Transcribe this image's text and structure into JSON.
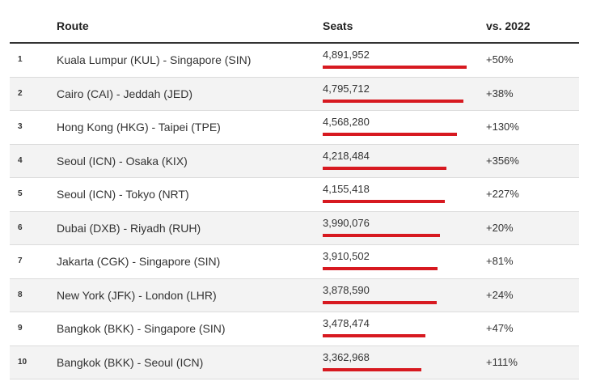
{
  "header": {
    "route": "Route",
    "seats": "Seats",
    "vs": "vs. 2022"
  },
  "accent_color": "#d71920",
  "chart_data": {
    "type": "table",
    "columns": [
      "",
      "Route",
      "Seats",
      "vs. 2022"
    ],
    "bar_color": "#d71920",
    "rows": [
      {
        "rank": "1",
        "route": "Kuala Lumpur (KUL) - Singapore (SIN)",
        "seats": "4,891,952",
        "value": 4891952,
        "vs": "+50%"
      },
      {
        "rank": "2",
        "route": "Cairo (CAI) - Jeddah (JED)",
        "seats": "4,795,712",
        "value": 4795712,
        "vs": "+38%"
      },
      {
        "rank": "3",
        "route": "Hong Kong (HKG) - Taipei (TPE)",
        "seats": "4,568,280",
        "value": 4568280,
        "vs": "+130%"
      },
      {
        "rank": "4",
        "route": "Seoul (ICN) - Osaka (KIX)",
        "seats": "4,218,484",
        "value": 4218484,
        "vs": "+356%"
      },
      {
        "rank": "5",
        "route": "Seoul (ICN) - Tokyo (NRT)",
        "seats": "4,155,418",
        "value": 4155418,
        "vs": "+227%"
      },
      {
        "rank": "6",
        "route": "Dubai (DXB) - Riyadh (RUH)",
        "seats": "3,990,076",
        "value": 3990076,
        "vs": "+20%"
      },
      {
        "rank": "7",
        "route": "Jakarta (CGK) - Singapore (SIN)",
        "seats": "3,910,502",
        "value": 3910502,
        "vs": "+81%"
      },
      {
        "rank": "8",
        "route": "New York (JFK) - London (LHR)",
        "seats": "3,878,590",
        "value": 3878590,
        "vs": "+24%"
      },
      {
        "rank": "9",
        "route": "Bangkok (BKK) - Singapore (SIN)",
        "seats": "3,478,474",
        "value": 3478474,
        "vs": "+47%"
      },
      {
        "rank": "10",
        "route": "Bangkok (BKK) - Seoul (ICN)",
        "seats": "3,362,968",
        "value": 3362968,
        "vs": "+111%"
      }
    ]
  }
}
